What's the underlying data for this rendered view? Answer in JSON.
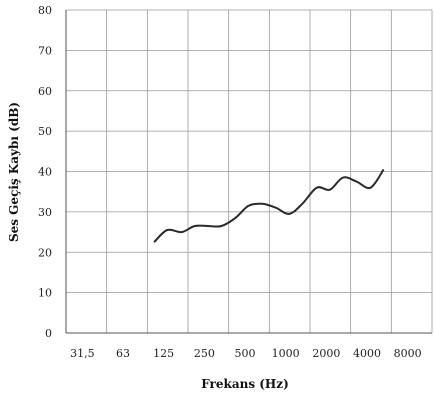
{
  "chart_data": {
    "type": "line",
    "xlabel": "Frekans  (Hz)",
    "ylabel": "Ses Geçiş Kaybı (dB)",
    "x_ticks": [
      "31,5",
      "63",
      "125",
      "250",
      "500",
      "1000",
      "2000",
      "4000",
      "8000"
    ],
    "y_ticks": [
      "0",
      "10",
      "20",
      "30",
      "40",
      "50",
      "60",
      "70",
      "80"
    ],
    "ylim": [
      0,
      80
    ],
    "x_scale": "log",
    "grid": true,
    "series": [
      {
        "x": [
          100,
          125,
          160,
          200,
          250,
          315,
          400,
          500,
          630,
          800,
          1000,
          1250,
          1600,
          2000,
          2500,
          3150,
          4000,
          5000
        ],
        "values": [
          22.5,
          25.5,
          25.0,
          26.5,
          26.5,
          26.5,
          28.5,
          31.5,
          32.0,
          31.0,
          29.5,
          32.0,
          36.0,
          35.5,
          38.5,
          37.5,
          36.0,
          40.5
        ],
        "color": "#2a2a2a"
      }
    ]
  }
}
